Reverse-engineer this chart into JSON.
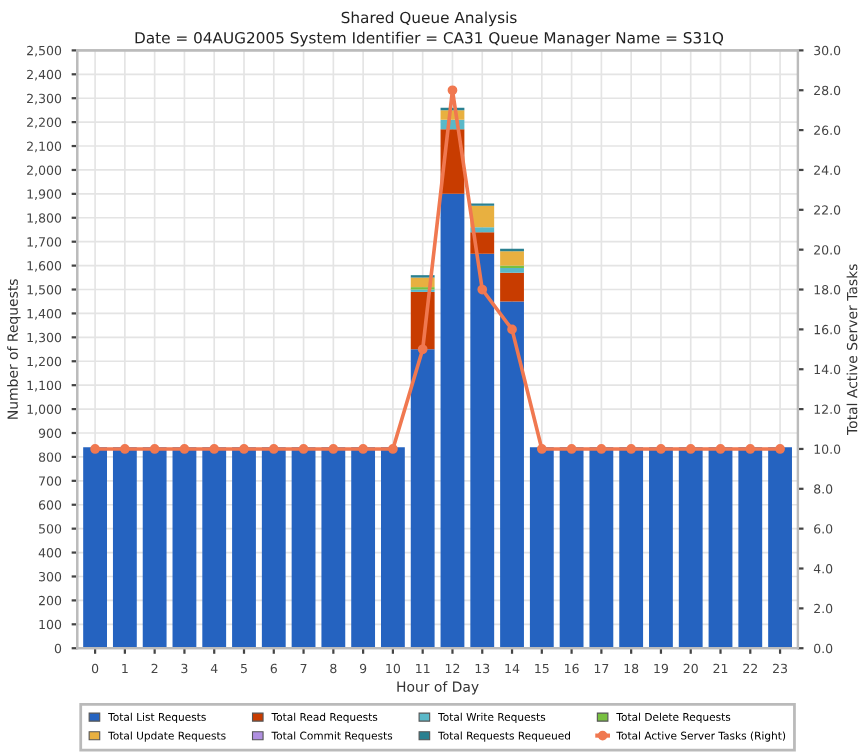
{
  "chart_data": {
    "type": "bar",
    "stacked": true,
    "title": "Shared Queue Analysis",
    "subtitle": "Date = 04AUG2005 System Identifier = CA31 Queue Manager Name = S31Q",
    "xlabel": "Hour of Day",
    "ylabel": "Number of Requests",
    "y2label": "Total Active Server Tasks",
    "categories": [
      "0",
      "1",
      "2",
      "3",
      "4",
      "5",
      "6",
      "7",
      "8",
      "9",
      "10",
      "11",
      "12",
      "13",
      "14",
      "15",
      "16",
      "17",
      "18",
      "19",
      "20",
      "21",
      "22",
      "23"
    ],
    "series": [
      {
        "name": "Total List Requests",
        "color": "#2563c0",
        "values": [
          840,
          840,
          840,
          840,
          840,
          840,
          840,
          840,
          840,
          840,
          840,
          1250,
          1900,
          1650,
          1450,
          840,
          840,
          840,
          840,
          840,
          840,
          840,
          840,
          840
        ]
      },
      {
        "name": "Total Read Requests",
        "color": "#c83c00",
        "values": [
          0,
          0,
          0,
          0,
          0,
          0,
          0,
          0,
          0,
          0,
          0,
          240,
          270,
          90,
          120,
          0,
          0,
          0,
          0,
          0,
          0,
          0,
          0,
          0
        ]
      },
      {
        "name": "Total Write Requests",
        "color": "#5ab8c8",
        "values": [
          0,
          0,
          0,
          0,
          0,
          0,
          0,
          0,
          0,
          0,
          0,
          10,
          40,
          20,
          20,
          0,
          0,
          0,
          0,
          0,
          0,
          0,
          0,
          0
        ]
      },
      {
        "name": "Total Delete Requests",
        "color": "#78c040",
        "values": [
          0,
          0,
          0,
          0,
          0,
          0,
          0,
          0,
          0,
          0,
          0,
          10,
          0,
          0,
          10,
          0,
          0,
          0,
          0,
          0,
          0,
          0,
          0,
          0
        ]
      },
      {
        "name": "Total Update Requests",
        "color": "#e8b040",
        "values": [
          0,
          0,
          0,
          0,
          0,
          0,
          0,
          0,
          0,
          0,
          0,
          40,
          40,
          90,
          60,
          0,
          0,
          0,
          0,
          0,
          0,
          0,
          0,
          0
        ]
      },
      {
        "name": "Total Commit Requests",
        "color": "#b090e0",
        "values": [
          0,
          0,
          0,
          0,
          0,
          0,
          0,
          0,
          0,
          0,
          0,
          0,
          0,
          0,
          0,
          0,
          0,
          0,
          0,
          0,
          0,
          0,
          0,
          0
        ]
      },
      {
        "name": "Total Requests Requeued",
        "color": "#2a8090",
        "values": [
          0,
          0,
          0,
          0,
          0,
          0,
          0,
          0,
          0,
          0,
          0,
          10,
          10,
          10,
          10,
          0,
          0,
          0,
          0,
          0,
          0,
          0,
          0,
          0
        ]
      },
      {
        "name": "Total Active Server Tasks (Right)",
        "color": "#f07850",
        "type": "line",
        "axis": "y2",
        "marker": "circle",
        "values": [
          10,
          10,
          10,
          10,
          10,
          10,
          10,
          10,
          10,
          10,
          10,
          15,
          28,
          18,
          16,
          10,
          10,
          10,
          10,
          10,
          10,
          10,
          10,
          10
        ]
      }
    ],
    "ylim": [
      0,
      2500
    ],
    "yticks": [
      0,
      100,
      200,
      300,
      400,
      500,
      600,
      700,
      800,
      900,
      {
        "value": 1000,
        "label": "1,000"
      },
      {
        "value": 1100,
        "label": "1,100"
      },
      {
        "value": 1200,
        "label": "1,200"
      },
      {
        "value": 1300,
        "label": "1,300"
      },
      {
        "value": 1400,
        "label": "1,400"
      },
      {
        "value": 1500,
        "label": "1,500"
      },
      {
        "value": 1600,
        "label": "1,600"
      },
      {
        "value": 1700,
        "label": "1,700"
      },
      {
        "value": 1800,
        "label": "1,800"
      },
      {
        "value": 1900,
        "label": "1,900"
      },
      {
        "value": 2000,
        "label": "2,000"
      },
      {
        "value": 2100,
        "label": "2,100"
      },
      {
        "value": 2200,
        "label": "2,200"
      },
      {
        "value": 2300,
        "label": "2,300"
      },
      {
        "value": 2400,
        "label": "2,400"
      },
      {
        "value": 2500,
        "label": "2,500"
      }
    ],
    "y2lim": [
      0,
      30
    ],
    "y2ticks": [
      {
        "value": 0,
        "label": "0.0"
      },
      {
        "value": 2,
        "label": "2.0"
      },
      {
        "value": 4,
        "label": "4.0"
      },
      {
        "value": 6,
        "label": "6.0"
      },
      {
        "value": 8,
        "label": "8.0"
      },
      {
        "value": 10,
        "label": "10.0"
      },
      {
        "value": 12,
        "label": "12.0"
      },
      {
        "value": 14,
        "label": "14.0"
      },
      {
        "value": 16,
        "label": "16.0"
      },
      {
        "value": 18,
        "label": "18.0"
      },
      {
        "value": 20,
        "label": "20.0"
      },
      {
        "value": 22,
        "label": "22.0"
      },
      {
        "value": 24,
        "label": "24.0"
      },
      {
        "value": 26,
        "label": "26.0"
      },
      {
        "value": 28,
        "label": "28.0"
      },
      {
        "value": 30,
        "label": "30.0"
      }
    ],
    "grid": true,
    "legend": "bottom"
  }
}
